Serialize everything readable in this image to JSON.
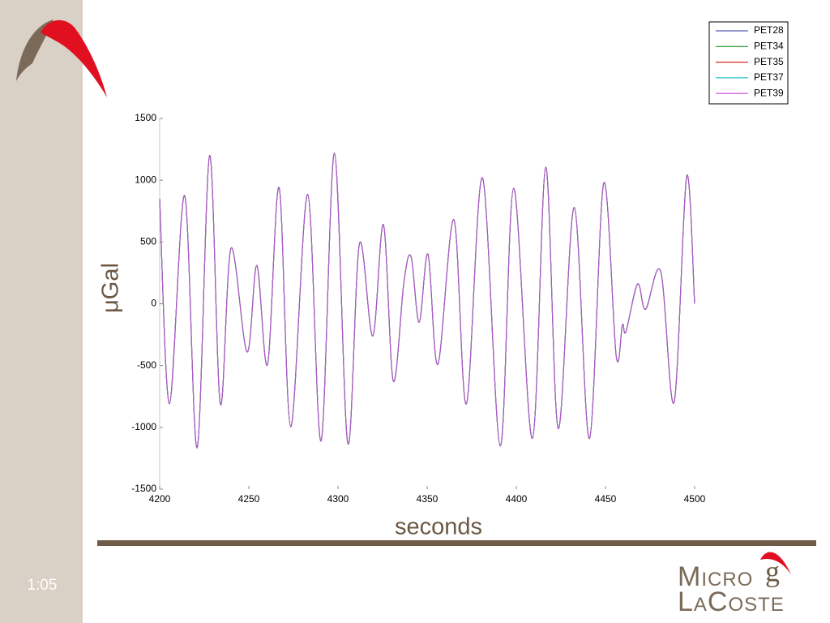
{
  "chart_data": {
    "type": "line",
    "x_label": "seconds",
    "y_label": "μGal",
    "x": [
      4200,
      4205.5,
      4214,
      4221,
      4228,
      4234,
      4240,
      4249,
      4254.5,
      4260.5,
      4267,
      4273.5,
      4283,
      4290.5,
      4298,
      4305.5,
      4312,
      4319.5,
      4325.5,
      4331,
      4337,
      4341,
      4345.5,
      4350.5,
      4356,
      4365,
      4372,
      4381,
      4391,
      4398.5,
      4409,
      4416.5,
      4423.5,
      4432.5,
      4441,
      4449,
      4456,
      4459.5,
      4461.5,
      4468,
      4472.5,
      4481,
      4488.5,
      4495.5,
      4500
    ],
    "series": [
      {
        "name": "PET28",
        "color": "#5a5ab4",
        "values": [
          850,
          -810,
          875,
          -1165,
          1200,
          -810,
          450,
          -390,
          310,
          -490,
          940,
          -995,
          885,
          -1110,
          1220,
          -1130,
          485,
          -260,
          640,
          -625,
          180,
          380,
          -150,
          400,
          -490,
          680,
          -810,
          1020,
          -1150,
          935,
          -1090,
          1105,
          -1010,
          780,
          -1090,
          975,
          -420,
          -170,
          -225,
          160,
          -45,
          260,
          -795,
          1030,
          0
        ]
      },
      {
        "name": "PET34",
        "color": "#2e9a2e",
        "values": [
          850,
          -810,
          875,
          -1165,
          1200,
          -810,
          450,
          -390,
          310,
          -490,
          940,
          -995,
          885,
          -1110,
          1220,
          -1130,
          485,
          -260,
          640,
          -625,
          180,
          380,
          -150,
          400,
          -490,
          680,
          -810,
          1020,
          -1150,
          935,
          -1090,
          1105,
          -1010,
          780,
          -1090,
          975,
          -420,
          -170,
          -225,
          160,
          -45,
          260,
          -795,
          1030,
          0
        ]
      },
      {
        "name": "PET35",
        "color": "#e02424",
        "values": [
          850,
          -810,
          875,
          -1165,
          1200,
          -810,
          450,
          -390,
          310,
          -490,
          940,
          -995,
          885,
          -1110,
          1220,
          -1130,
          485,
          -260,
          640,
          -625,
          180,
          380,
          -150,
          400,
          -490,
          680,
          -810,
          1020,
          -1150,
          935,
          -1090,
          1105,
          -1010,
          780,
          -1090,
          975,
          -420,
          -170,
          -225,
          160,
          -45,
          260,
          -795,
          1030,
          0
        ]
      },
      {
        "name": "PET37",
        "color": "#26c0c8",
        "values": [
          850,
          -810,
          875,
          -1165,
          1200,
          -810,
          450,
          -390,
          310,
          -490,
          940,
          -995,
          885,
          -1110,
          1220,
          -1130,
          485,
          -260,
          640,
          -625,
          180,
          380,
          -150,
          400,
          -490,
          680,
          -810,
          1020,
          -1150,
          935,
          -1090,
          1105,
          -1010,
          780,
          -1090,
          975,
          -420,
          -170,
          -225,
          160,
          -45,
          260,
          -795,
          1030,
          0
        ]
      },
      {
        "name": "PET39",
        "color": "#cc44d4",
        "values": [
          850,
          -810,
          875,
          -1165,
          1200,
          -810,
          450,
          -390,
          310,
          -490,
          940,
          -995,
          885,
          -1110,
          1220,
          -1130,
          485,
          -260,
          640,
          -625,
          180,
          380,
          -150,
          400,
          -490,
          680,
          -810,
          1020,
          -1150,
          935,
          -1090,
          1105,
          -1010,
          780,
          -1090,
          975,
          -420,
          -170,
          -225,
          160,
          -45,
          260,
          -795,
          1030,
          0
        ]
      }
    ],
    "xlim": [
      4200,
      4500
    ],
    "xticks": [
      4200,
      4250,
      4300,
      4350,
      4400,
      4450,
      4500
    ],
    "ylim": [
      -1500,
      1500
    ],
    "yticks": [
      -1500,
      -1000,
      -500,
      0,
      500,
      1000,
      1500
    ],
    "grid": false,
    "legend": "upper right"
  },
  "slide": {
    "time": "1:05",
    "logo": {
      "line1": "Micro",
      "mark": "g",
      "line2": "LaCoste"
    }
  }
}
